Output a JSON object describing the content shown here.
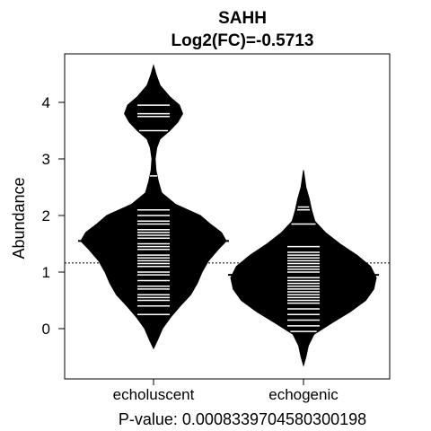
{
  "chart_data": {
    "type": "beanplot",
    "title": "SAHH",
    "subtitle": "Log2(FC)=-0.5713",
    "xlabel": "P-value: 0.000833970458030019​8",
    "ylabel": "Abundance",
    "categories": [
      "echoluscent",
      "echogenic"
    ],
    "yticks": [
      0,
      1,
      2,
      3,
      4
    ],
    "ylim": [
      -0.9,
      4.9
    ],
    "overall_mean": 1.16,
    "series": [
      {
        "name": "echoluscent",
        "group_mean": 1.55,
        "density": [
          [
            -0.35,
            0.0
          ],
          [
            -0.2,
            0.05
          ],
          [
            0.0,
            0.11
          ],
          [
            0.2,
            0.21
          ],
          [
            0.4,
            0.33
          ],
          [
            0.6,
            0.46
          ],
          [
            0.8,
            0.54
          ],
          [
            1.0,
            0.6
          ],
          [
            1.2,
            0.68
          ],
          [
            1.4,
            0.8
          ],
          [
            1.55,
            0.9
          ],
          [
            1.7,
            0.84
          ],
          [
            1.85,
            0.7
          ],
          [
            2.0,
            0.58
          ],
          [
            2.2,
            0.27
          ],
          [
            2.4,
            0.1
          ],
          [
            2.6,
            0.06
          ],
          [
            2.8,
            0.03
          ],
          [
            3.0,
            0.02
          ],
          [
            3.2,
            0.04
          ],
          [
            3.35,
            0.08
          ],
          [
            3.5,
            0.2
          ],
          [
            3.65,
            0.3
          ],
          [
            3.8,
            0.36
          ],
          [
            3.95,
            0.32
          ],
          [
            4.1,
            0.2
          ],
          [
            4.3,
            0.08
          ],
          [
            4.5,
            0.03
          ],
          [
            4.65,
            0.0
          ]
        ],
        "observations": [
          0.25,
          0.4,
          0.5,
          0.55,
          0.6,
          0.7,
          0.75,
          0.85,
          0.95,
          1.0,
          1.1,
          1.15,
          1.2,
          1.25,
          1.3,
          1.4,
          1.45,
          1.5,
          1.6,
          1.65,
          1.7,
          1.75,
          1.85,
          1.9,
          2.0,
          2.1,
          2.7,
          3.5,
          3.75,
          3.8,
          3.95
        ]
      },
      {
        "name": "echogenic",
        "group_mean": 0.95,
        "density": [
          [
            -0.65,
            0.0
          ],
          [
            -0.5,
            0.03
          ],
          [
            -0.3,
            0.06
          ],
          [
            -0.1,
            0.13
          ],
          [
            0.1,
            0.35
          ],
          [
            0.3,
            0.58
          ],
          [
            0.5,
            0.77
          ],
          [
            0.7,
            0.87
          ],
          [
            0.9,
            0.9
          ],
          [
            1.1,
            0.83
          ],
          [
            1.3,
            0.66
          ],
          [
            1.5,
            0.45
          ],
          [
            1.7,
            0.27
          ],
          [
            1.9,
            0.14
          ],
          [
            2.1,
            0.1
          ],
          [
            2.3,
            0.07
          ],
          [
            2.5,
            0.03
          ],
          [
            2.8,
            0.0
          ]
        ],
        "observations": [
          -0.05,
          0.05,
          0.15,
          0.25,
          0.35,
          0.45,
          0.5,
          0.55,
          0.6,
          0.65,
          0.7,
          0.75,
          0.8,
          0.85,
          0.9,
          0.95,
          1.0,
          1.05,
          1.1,
          1.15,
          1.2,
          1.25,
          1.3,
          1.35,
          1.45,
          1.85,
          2.1,
          2.15
        ]
      }
    ],
    "colors": {
      "bean": "#000000",
      "observation_line": "#ffffff",
      "background": "#ffffff"
    }
  }
}
